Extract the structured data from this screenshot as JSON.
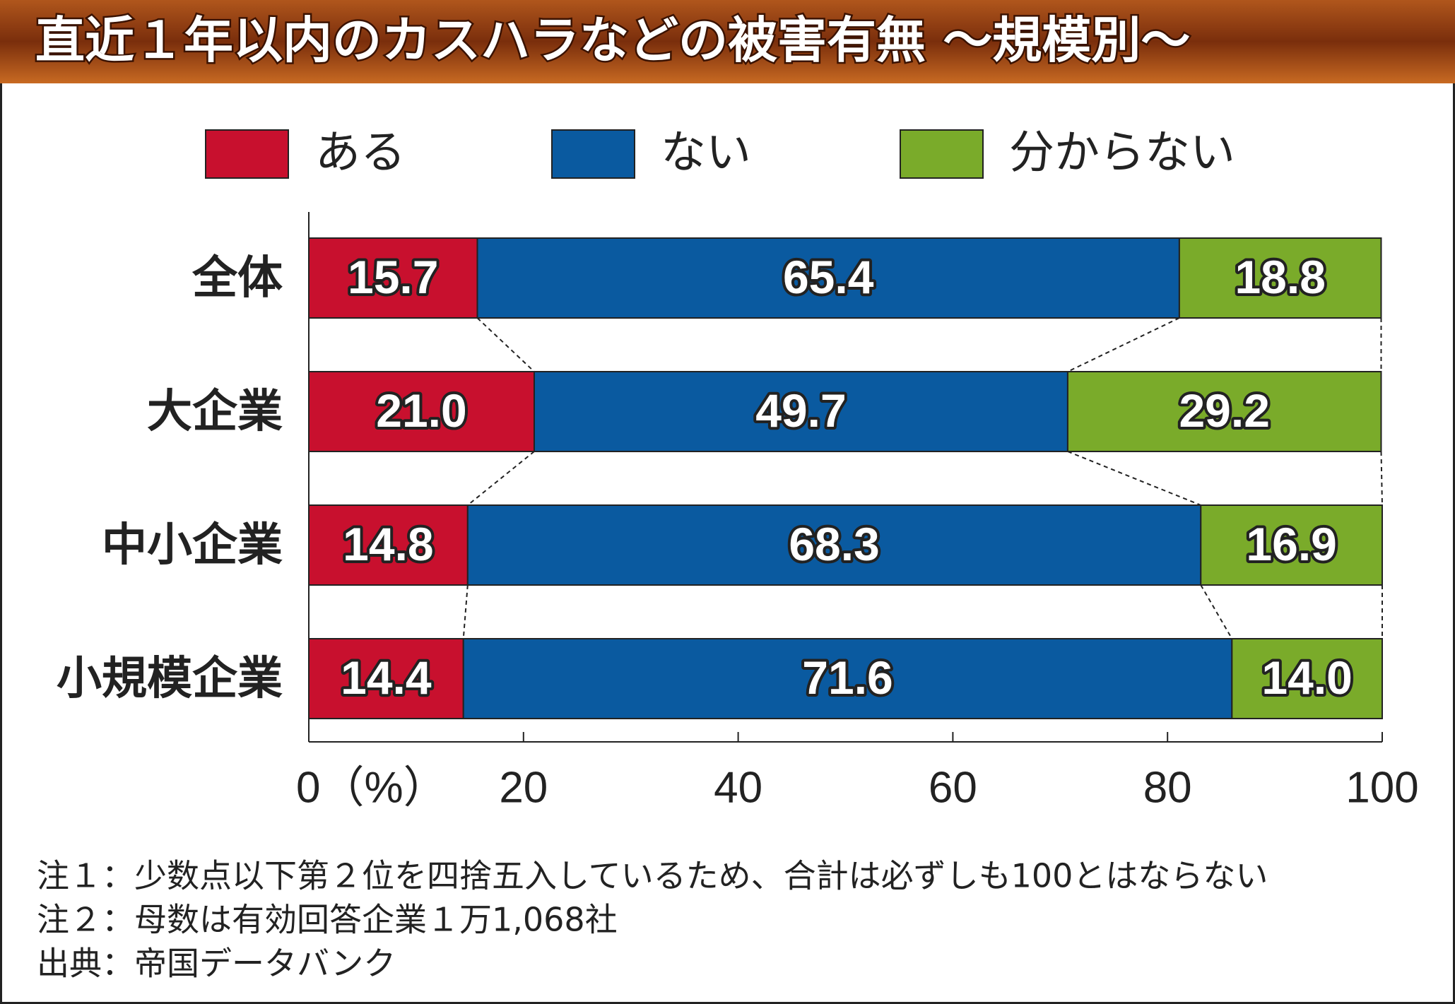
{
  "chart_data": {
    "type": "stacked_bar_h",
    "title": "直近１年以内のカスハラなどの被害有無 ～規模別～",
    "categories": [
      "全体",
      "大企業",
      "中小企業",
      "小規模企業"
    ],
    "series": [
      {
        "name": "ある",
        "color": "#c8102e",
        "values": [
          15.7,
          21.0,
          14.8,
          14.4
        ],
        "value_labels": [
          "15.7",
          "21.0",
          "14.8",
          "14.4"
        ]
      },
      {
        "name": "ない",
        "color": "#0a5aa0",
        "values": [
          65.4,
          49.7,
          68.3,
          71.6
        ],
        "value_labels": [
          "65.4",
          "49.7",
          "68.3",
          "71.6"
        ]
      },
      {
        "name": "分からない",
        "color": "#7aab2a",
        "values": [
          18.8,
          29.2,
          16.9,
          14.0
        ],
        "value_labels": [
          "18.8",
          "29.2",
          "16.9",
          "14.0"
        ]
      }
    ],
    "xlim": [
      0,
      100
    ],
    "xticks": [
      {
        "value": 0,
        "label": "0（%）"
      },
      20,
      40,
      60,
      80,
      100
    ],
    "notes": [
      "注１：少数点以下第２位を四捨五入しているため、合計は必ずしも100とはならない",
      "注２：母数は有効回答企業１万1,068社",
      "出典：帝国データバンク"
    ]
  }
}
